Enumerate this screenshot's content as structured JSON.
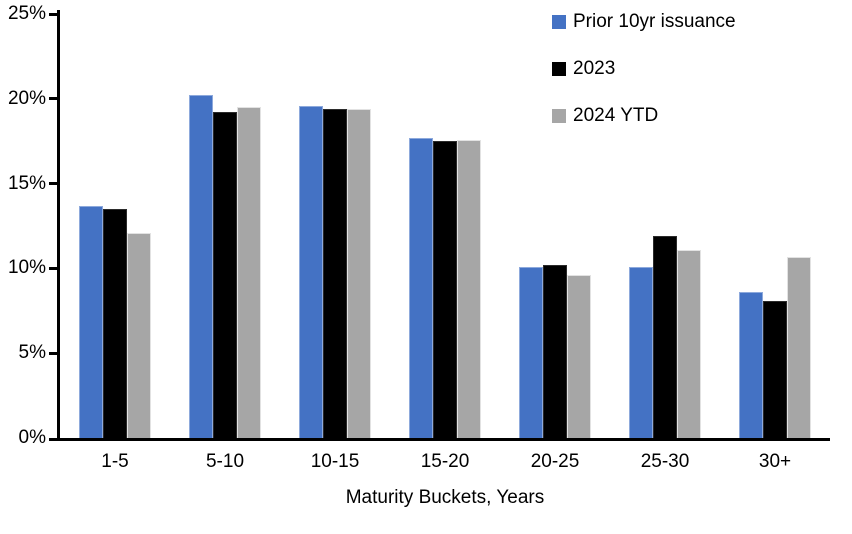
{
  "chart_data": {
    "type": "bar",
    "title": "",
    "xlabel": "Maturity Buckets, Years",
    "ylabel": "",
    "ylim": [
      0,
      25
    ],
    "ytick_step": 5,
    "yticks": [
      {
        "value": 0,
        "label": "0%"
      },
      {
        "value": 5,
        "label": "5%"
      },
      {
        "value": 10,
        "label": "10%"
      },
      {
        "value": 15,
        "label": "15%"
      },
      {
        "value": 20,
        "label": "20%"
      },
      {
        "value": 25,
        "label": "25%"
      }
    ],
    "grid": false,
    "legend_position": "top-right",
    "categories": [
      "1-5",
      "5-10",
      "10-15",
      "15-20",
      "20-25",
      "25-30",
      "30+"
    ],
    "series": [
      {
        "name": "Prior 10yr issuance",
        "color": "#4472C4",
        "border_color": "#8DA9DC",
        "values": [
          13.7,
          20.2,
          19.6,
          17.7,
          10.1,
          10.1,
          8.6
        ]
      },
      {
        "name": "2023",
        "color": "#000000",
        "border_color": "#2B2B2B",
        "values": [
          13.5,
          19.2,
          19.4,
          17.5,
          10.2,
          11.9,
          8.1
        ]
      },
      {
        "name": "2024 YTD",
        "color": "#A6A6A6",
        "border_color": "#E2E2E2",
        "values": [
          12.1,
          19.5,
          19.4,
          17.6,
          9.6,
          11.1,
          10.7
        ]
      }
    ],
    "axis_color": "#000000"
  }
}
